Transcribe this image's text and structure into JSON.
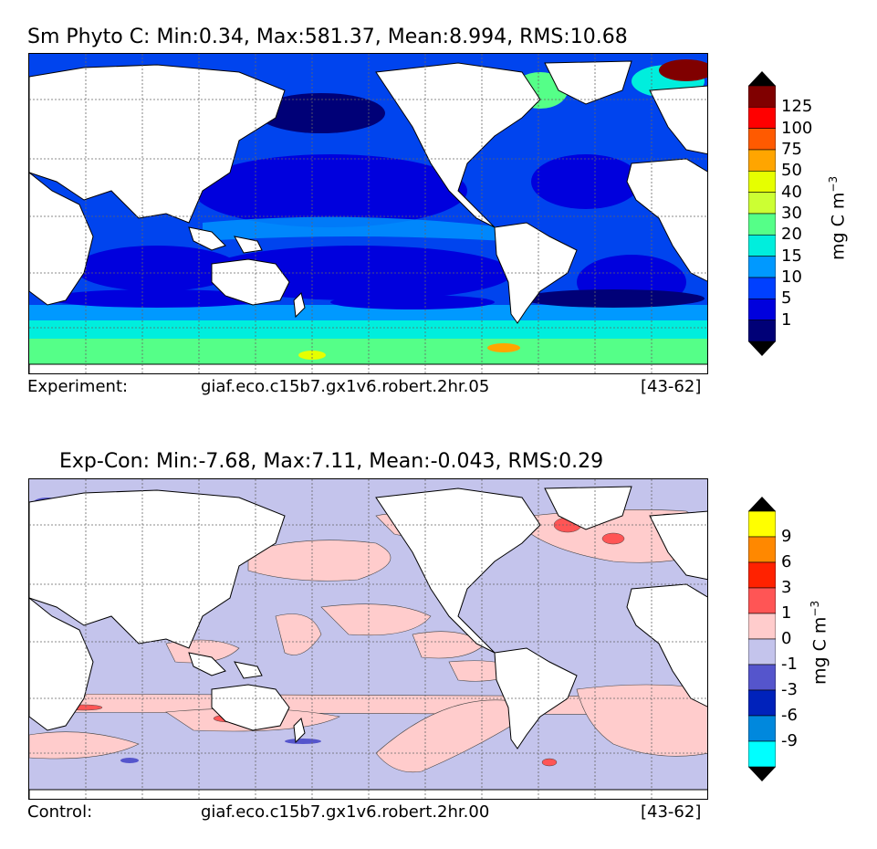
{
  "panel_top": {
    "title": "Sm Phyto C: Min:0.34, Max:581.37, Mean:8.994, RMS:10.68",
    "footer_label": "Experiment:",
    "footer_case": "giaf.eco.c15b7.gx1v6.robert.2hr.05",
    "footer_years": "[43-62]",
    "colorbar": {
      "unit_base": "mg C m",
      "unit_exp": "−3",
      "ticks": [
        "125",
        "100",
        "75",
        "50",
        "40",
        "30",
        "20",
        "15",
        "10",
        "5",
        "1"
      ],
      "colors": [
        "#800000",
        "#ff0000",
        "#ff5a00",
        "#ffa500",
        "#e6ff00",
        "#ccff33",
        "#55ff88",
        "#00eedd",
        "#0099ff",
        "#0040ff",
        "#0000dd",
        "#000077"
      ],
      "over_color": "#000000",
      "under_color": "#000000"
    }
  },
  "panel_bottom": {
    "title": "Exp-Con: Min:-7.68, Max:7.11, Mean:-0.043, RMS:0.29",
    "footer_label": "Control:",
    "footer_case": "giaf.eco.c15b7.gx1v6.robert.2hr.00",
    "footer_years": "[43-62]",
    "colorbar": {
      "unit_base": "mg C m",
      "unit_exp": "−3",
      "ticks": [
        "9",
        "6",
        "3",
        "1",
        "0",
        "-1",
        "-3",
        "-6",
        "-9"
      ],
      "colors": [
        "#ffff00",
        "#ff8800",
        "#ff2200",
        "#ff5555",
        "#ffcccc",
        "#c4c4ec",
        "#5555cc",
        "#0022bb",
        "#0088dd",
        "#00ffff"
      ],
      "over_color": "#000000",
      "under_color": "#000000"
    }
  }
}
